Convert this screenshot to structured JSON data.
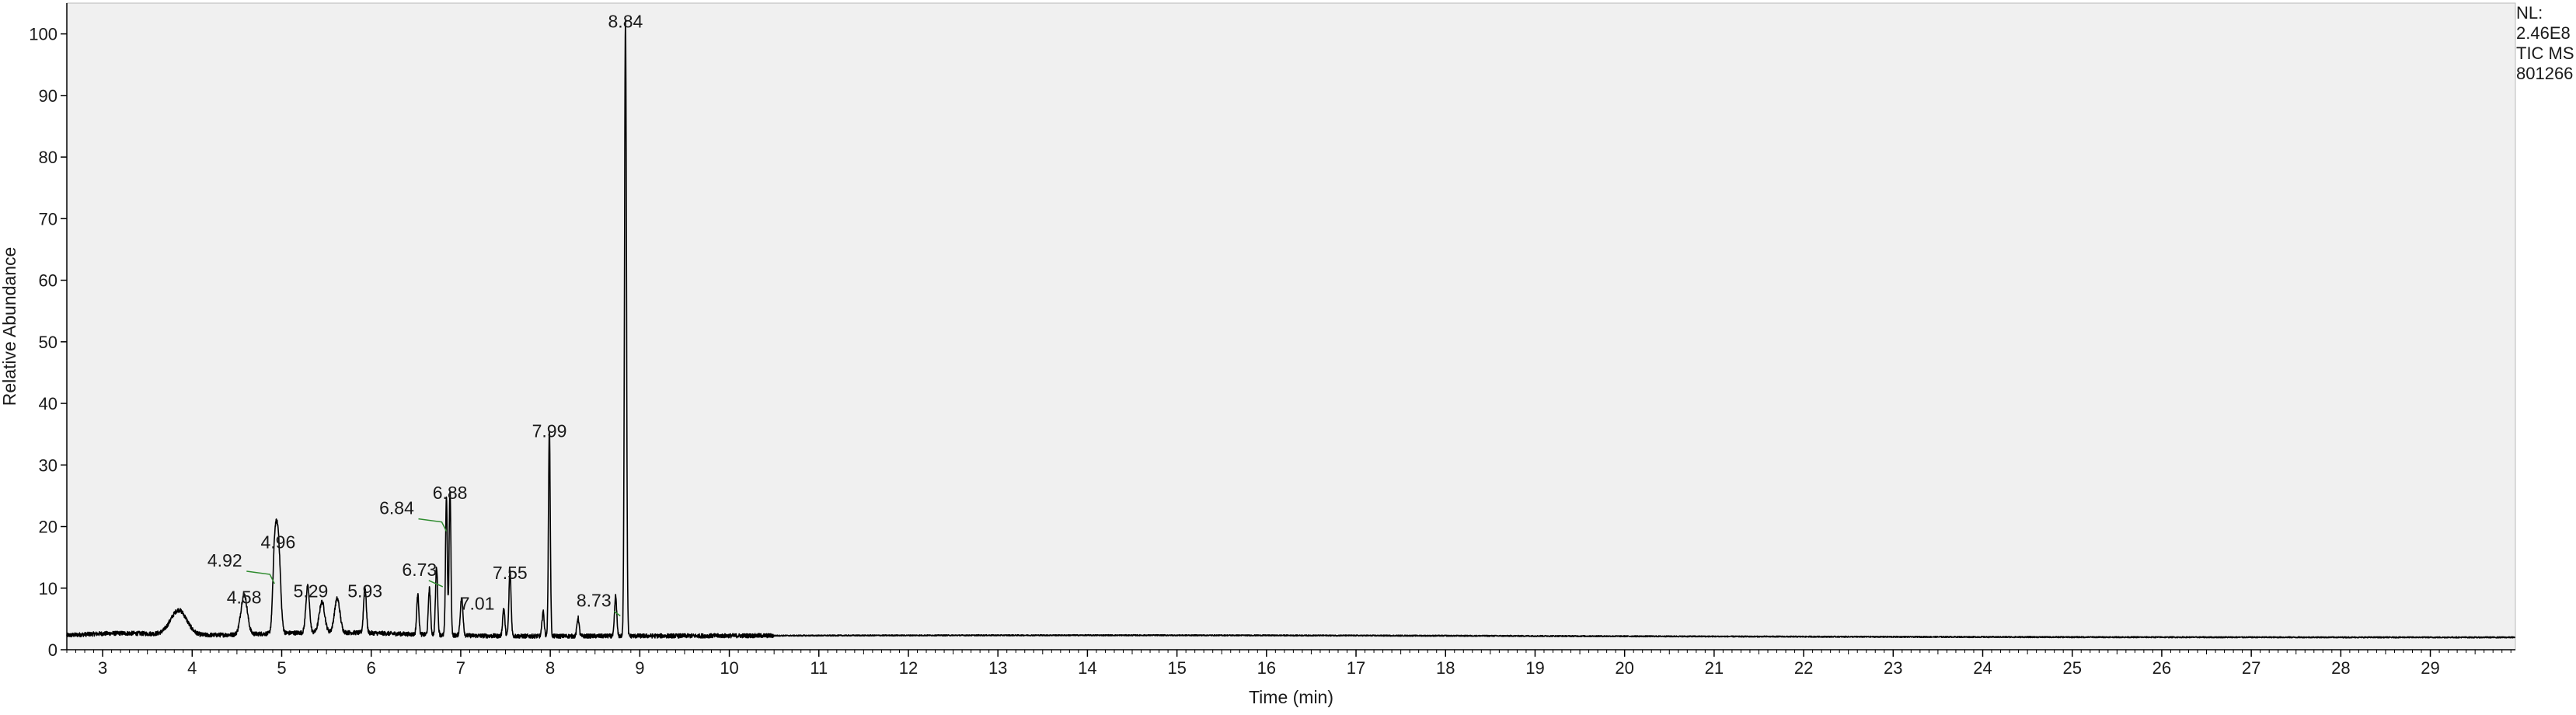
{
  "info_panel": {
    "nl_label": "NL:",
    "nl_value": "2.46E8",
    "trace_label": "TIC  MS",
    "file_id": "801266"
  },
  "colors": {
    "plot_background": "#f0f0f0",
    "trace": "#000000",
    "peak_leader": "#2e8b2e"
  },
  "chart_data": {
    "type": "line",
    "xlabel": "Time (min)",
    "ylabel": "Relative Abundance",
    "xlim": [
      2.6,
      29.95
    ],
    "ylim": [
      0,
      105
    ],
    "xticks": [
      3,
      4,
      5,
      6,
      7,
      8,
      9,
      10,
      11,
      12,
      13,
      14,
      15,
      16,
      17,
      18,
      19,
      20,
      21,
      22,
      23,
      24,
      25,
      26,
      27,
      28,
      29
    ],
    "yticks": [
      0,
      10,
      20,
      30,
      40,
      50,
      60,
      70,
      80,
      90,
      100
    ],
    "baseline": 2.0,
    "series": [
      {
        "peaks": [
          {
            "rt": 3.85,
            "height": 4.0,
            "width": 0.09
          },
          {
            "rt": 4.58,
            "height": 6.5,
            "width": 0.035
          },
          {
            "rt": 4.92,
            "height": 11.5,
            "width": 0.02
          },
          {
            "rt": 4.96,
            "height": 15.5,
            "width": 0.025
          },
          {
            "rt": 5.29,
            "height": 7.5,
            "width": 0.02
          },
          {
            "rt": 5.45,
            "height": 5.0,
            "width": 0.03
          },
          {
            "rt": 5.62,
            "height": 5.5,
            "width": 0.03
          },
          {
            "rt": 5.93,
            "height": 7.5,
            "width": 0.015
          },
          {
            "rt": 6.52,
            "height": 6.5,
            "width": 0.012
          },
          {
            "rt": 6.65,
            "height": 7.5,
            "width": 0.012
          },
          {
            "rt": 6.73,
            "height": 11.0,
            "width": 0.012
          },
          {
            "rt": 6.84,
            "height": 22.5,
            "width": 0.01
          },
          {
            "rt": 6.88,
            "height": 23.5,
            "width": 0.01
          },
          {
            "rt": 7.01,
            "height": 6.0,
            "width": 0.015
          },
          {
            "rt": 7.48,
            "height": 4.5,
            "width": 0.012
          },
          {
            "rt": 7.55,
            "height": 10.5,
            "width": 0.012
          },
          {
            "rt": 7.92,
            "height": 4.0,
            "width": 0.012
          },
          {
            "rt": 7.99,
            "height": 33.5,
            "width": 0.01
          },
          {
            "rt": 8.31,
            "height": 3.0,
            "width": 0.012
          },
          {
            "rt": 8.73,
            "height": 6.5,
            "width": 0.012
          },
          {
            "rt": 8.84,
            "height": 100.0,
            "width": 0.011
          }
        ]
      }
    ],
    "peak_labels": [
      {
        "text": "4.58",
        "x": 4.58,
        "y": 7.5
      },
      {
        "text": "4.92",
        "x": 4.92,
        "y": 13.5
      },
      {
        "text": "4.96",
        "x": 4.96,
        "y": 16.5
      },
      {
        "text": "5.29",
        "x": 5.29,
        "y": 8.5
      },
      {
        "text": "5.93",
        "x": 5.93,
        "y": 8.5
      },
      {
        "text": "6.73",
        "x": 6.73,
        "y": 12.0
      },
      {
        "text": "6.84",
        "x": 6.84,
        "y": 22.0
      },
      {
        "text": "6.88",
        "x": 6.88,
        "y": 24.5
      },
      {
        "text": "7.01",
        "x": 7.01,
        "y": 6.5
      },
      {
        "text": "7.55",
        "x": 7.55,
        "y": 11.5
      },
      {
        "text": "7.99",
        "x": 7.99,
        "y": 34.5
      },
      {
        "text": "8.73",
        "x": 8.73,
        "y": 7.0
      },
      {
        "text": "8.84",
        "x": 8.84,
        "y": 101.0
      }
    ]
  }
}
